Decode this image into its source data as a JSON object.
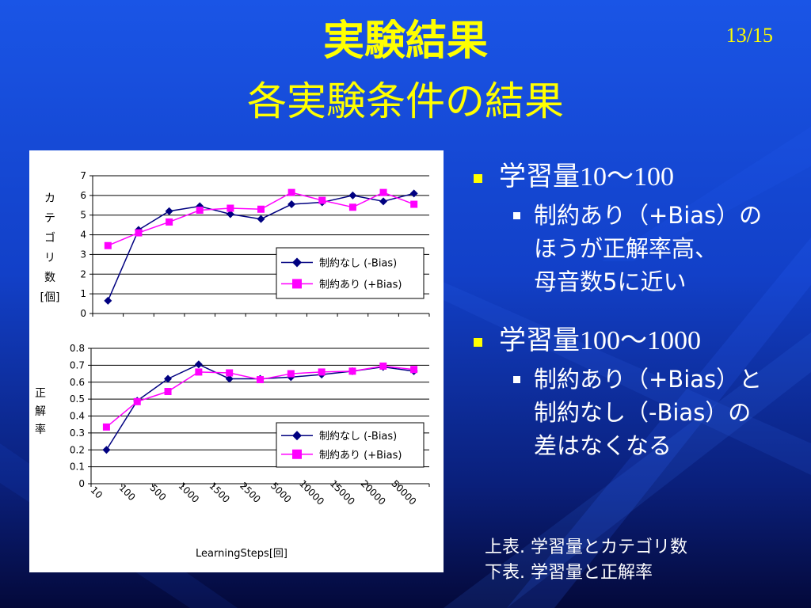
{
  "slide": {
    "title": "実験結果",
    "subtitle": "各実験条件の結果",
    "page_number": "13/15"
  },
  "bullets": [
    {
      "heading_prefix": "学習量",
      "heading_range": "10～100",
      "sub_lines": [
        "制約あり（+Bias）の",
        "ほうが正解率高、",
        "母音数5に近い"
      ]
    },
    {
      "heading_prefix": "学習量",
      "heading_range": "100～1000",
      "sub_lines": [
        "制約あり（+Bias）と",
        "制約なし（-Bias）の",
        "差はなくなる"
      ]
    }
  ],
  "notes": [
    "上表.  学習量とカテゴリ数",
    "下表.  学習量と正解率"
  ],
  "colors": {
    "series_no_bias": "#000080",
    "series_bias": "#ff00ff",
    "title": "#ffff00"
  },
  "chart_data": [
    {
      "type": "line",
      "ylabel": "カテゴリ数[個]",
      "ylabel_chars": [
        "カ",
        "テ",
        "ゴ",
        "リ",
        "数",
        "[個]"
      ],
      "xlabel": "",
      "ylim": [
        0,
        7
      ],
      "yticks": [
        "0",
        "1",
        "2",
        "3",
        "4",
        "5",
        "6",
        "7"
      ],
      "grid": true,
      "legend_position": "bottom-right",
      "categories": [
        "10",
        "100",
        "500",
        "1000",
        "1500",
        "2500",
        "5000",
        "10000",
        "15000",
        "20000",
        "50000"
      ],
      "series": [
        {
          "name": "制約なし (-Bias)",
          "marker": "diamond",
          "values": [
            0.65,
            4.25,
            5.2,
            5.45,
            5.05,
            4.8,
            5.55,
            5.65,
            6.0,
            5.7,
            6.1
          ]
        },
        {
          "name": "制約あり (+Bias)",
          "marker": "square",
          "values": [
            3.45,
            4.1,
            4.65,
            5.25,
            5.35,
            5.3,
            6.15,
            5.75,
            5.4,
            6.15,
            5.55
          ]
        }
      ]
    },
    {
      "type": "line",
      "ylabel": "正解率",
      "ylabel_chars": [
        "正",
        "解",
        "率"
      ],
      "xlabel": "LearningSteps[回]",
      "ylim": [
        0,
        0.8
      ],
      "yticks": [
        "0",
        "0.1",
        "0.2",
        "0.3",
        "0.4",
        "0.5",
        "0.6",
        "0.7",
        "0.8"
      ],
      "grid": true,
      "legend_position": "bottom-right",
      "categories": [
        "10",
        "100",
        "500",
        "1000",
        "1500",
        "2500",
        "5000",
        "10000",
        "15000",
        "20000",
        "50000"
      ],
      "series": [
        {
          "name": "制約なし (-Bias)",
          "marker": "diamond",
          "values": [
            0.2,
            0.49,
            0.62,
            0.705,
            0.62,
            0.62,
            0.63,
            0.645,
            0.665,
            0.69,
            0.665
          ]
        },
        {
          "name": "制約あり (+Bias)",
          "marker": "square",
          "values": [
            0.335,
            0.485,
            0.545,
            0.66,
            0.655,
            0.615,
            0.65,
            0.66,
            0.665,
            0.695,
            0.675
          ]
        }
      ]
    }
  ]
}
